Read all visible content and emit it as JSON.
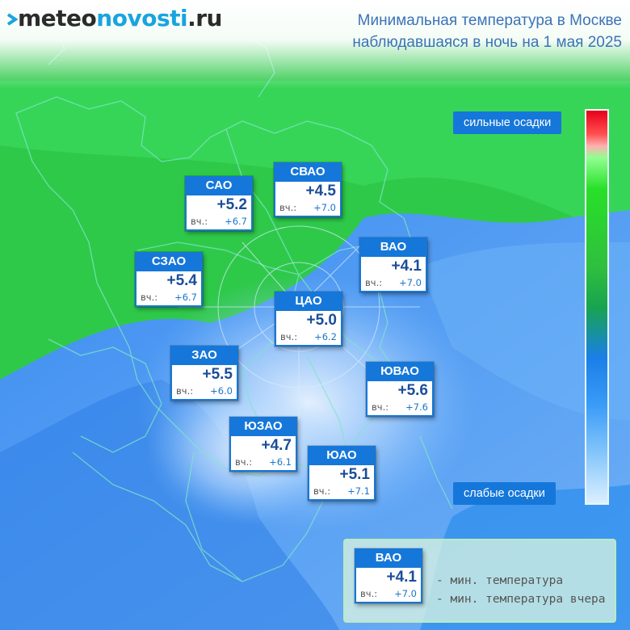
{
  "header": {
    "logo": {
      "part1": "meteo",
      "part2": "novosti",
      "part3": ".ru"
    },
    "title_line1": "Минимальная температура в Москве",
    "title_line2": "наблюдавшаяся в ночь на 1 мая 2025"
  },
  "yesterday_prefix": "вч.:",
  "districts": [
    {
      "name": "САО",
      "temp": "+5.2",
      "yesterday": "+6.7"
    },
    {
      "name": "СВАО",
      "temp": "+4.5",
      "yesterday": "+7.0"
    },
    {
      "name": "ВАО",
      "temp": "+4.1",
      "yesterday": "+7.0"
    },
    {
      "name": "СЗАО",
      "temp": "+5.4",
      "yesterday": "+6.7"
    },
    {
      "name": "ЦАО",
      "temp": "+5.0",
      "yesterday": "+6.2"
    },
    {
      "name": "ЗАО",
      "temp": "+5.5",
      "yesterday": "+6.0"
    },
    {
      "name": "ЮВАО",
      "temp": "+5.6",
      "yesterday": "+7.6"
    },
    {
      "name": "ЮЗАО",
      "temp": "+4.7",
      "yesterday": "+6.1"
    },
    {
      "name": "ЮАО",
      "temp": "+5.1",
      "yesterday": "+7.1"
    }
  ],
  "scale": {
    "top_label": "сильные осадки",
    "bottom_label": "слабые осадки"
  },
  "legend": {
    "sample": {
      "name": "ВАО",
      "temp": "+4.1",
      "yesterday": "+7.0"
    },
    "line_temp": "- мин. температура",
    "line_yesterday": "- мин. температура вчера"
  },
  "colors": {
    "box_blue": "#1577d9",
    "title_blue": "#3b73b8",
    "map_green": "#2fc94a",
    "map_blue": "#2f7fe6",
    "map_light": "#dcefff"
  }
}
